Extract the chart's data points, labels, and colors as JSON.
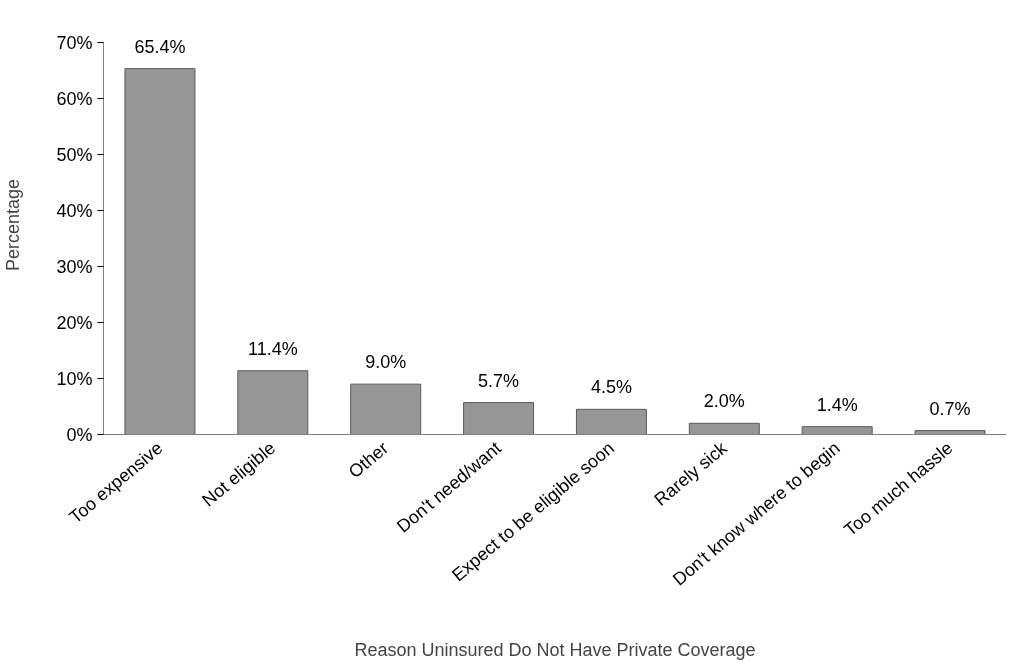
{
  "chart_data": {
    "type": "bar",
    "xlabel": "Reason Uninsured Do Not Have Private Coverage",
    "ylabel": "Percentage",
    "categories": [
      "Too expensive",
      "Not eligible",
      "Other",
      "Don't need/want",
      "Expect to be eligible soon",
      "Rarely sick",
      "Don't know where to begin",
      "Too much hassle"
    ],
    "values": [
      65.4,
      11.4,
      9.0,
      5.7,
      4.5,
      2.0,
      1.4,
      0.7
    ],
    "value_labels": [
      "65.4%",
      "11.4%",
      "9.0%",
      "5.7%",
      "4.5%",
      "2.0%",
      "1.4%",
      "0.7%"
    ],
    "color": "#969696",
    "ylim": [
      0,
      70
    ],
    "yticks": [
      {
        "value": 0,
        "label": "0%"
      },
      {
        "value": 10,
        "label": "10%"
      },
      {
        "value": 20,
        "label": "20%"
      },
      {
        "value": 30,
        "label": "30%"
      },
      {
        "value": 40,
        "label": "40%"
      },
      {
        "value": 50,
        "label": "50%"
      },
      {
        "value": 60,
        "label": "60%"
      },
      {
        "value": 70,
        "label": "70%"
      }
    ],
    "grid": false
  }
}
